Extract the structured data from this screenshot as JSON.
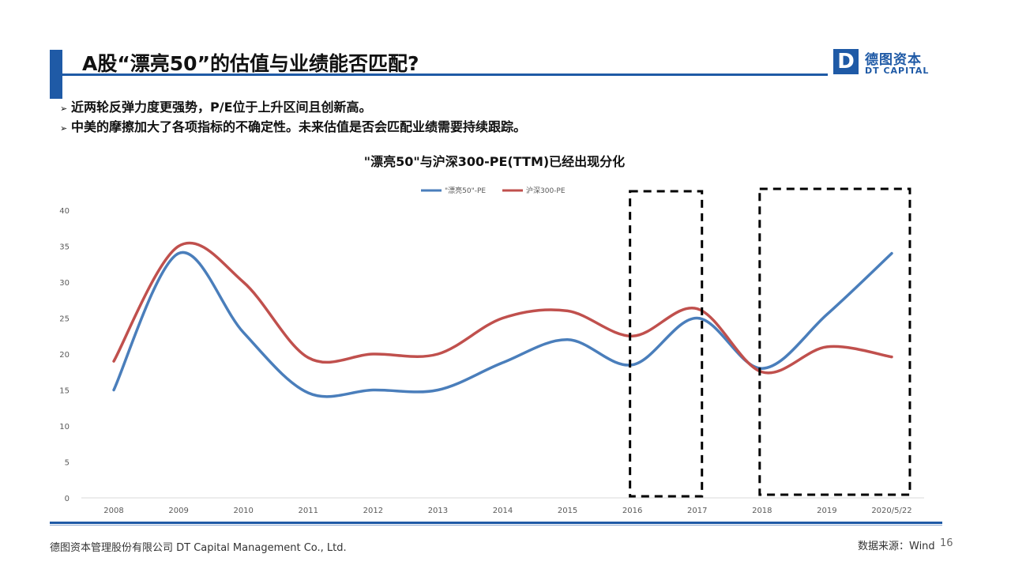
{
  "slide": {
    "title": "A股“漂亮50”的估值与业绩能否匹配?",
    "bullets": [
      "近两轮反弹力度更强势，P/E位于上升区间且创新高。",
      "中美的摩擦加大了各项指标的不确定性。未来估值是否会匹配业绩需要持续跟踪。"
    ],
    "bullet_marker": "➢"
  },
  "logo": {
    "mark": "D",
    "name_cn": "德图资本",
    "name_en": "DT CAPITAL",
    "color": "#1f5aa6"
  },
  "footer": {
    "company": "德图资本管理股份有限公司  DT Capital  Management  Co., Ltd.",
    "source": "数据来源：Wind",
    "page": "16"
  },
  "chart_data": {
    "type": "line",
    "title": "\"漂亮50\"与沪深300-PE(TTM)已经出现分化",
    "xlabel": "",
    "ylabel": "",
    "categories": [
      "2008",
      "2009",
      "2010",
      "2011",
      "2012",
      "2013",
      "2014",
      "2015",
      "2016",
      "2017",
      "2018",
      "2019",
      "2020/5/22"
    ],
    "series": [
      {
        "name": "\"漂亮50\"-PE",
        "color": "#4a7ebb",
        "values": [
          15,
          34,
          23,
          14.6,
          15,
          15,
          18.8,
          22,
          18.5,
          25,
          18,
          25.5,
          34
        ]
      },
      {
        "name": "沪深300-PE",
        "color": "#c0504d",
        "values": [
          19,
          35,
          30,
          19.5,
          20,
          20,
          25,
          26,
          22.5,
          26.3,
          17.5,
          21,
          19.6
        ]
      }
    ],
    "ylim": [
      0,
      40
    ],
    "yticks": [
      0,
      5,
      10,
      15,
      20,
      25,
      30,
      35,
      40
    ],
    "grid": false,
    "legend_position": "top-center",
    "annotations": [
      {
        "type": "dashed-box",
        "x_from": "2016",
        "x_to": "2017"
      },
      {
        "type": "dashed-box",
        "x_from": "2018",
        "x_to": "2020/5/22"
      }
    ]
  }
}
